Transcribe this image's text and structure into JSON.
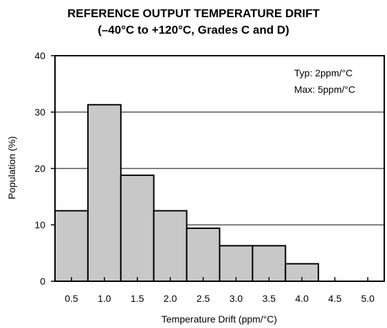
{
  "chart_data": {
    "type": "bar",
    "title_line1": "REFERENCE OUTPUT TEMPERATURE DRIFT",
    "title_line2": "(–40°C to +120°C, Grades C and D)",
    "xlabel": "Temperature Drift (ppm/°C)",
    "ylabel": "Population (%)",
    "ylim": [
      0,
      40
    ],
    "yticks": [
      0,
      10,
      20,
      30,
      40
    ],
    "xlim": [
      0.25,
      5.25
    ],
    "xticks": [
      0.5,
      1.0,
      1.5,
      2.0,
      2.5,
      3.0,
      3.5,
      4.0,
      4.5,
      5.0
    ],
    "xtick_labels": [
      "0.5",
      "1.0",
      "1.5",
      "2.0",
      "2.5",
      "3.0",
      "3.5",
      "4.0",
      "4.5",
      "5.0"
    ],
    "bins": [
      {
        "from": 0.25,
        "to": 0.75,
        "value": 12.5
      },
      {
        "from": 0.75,
        "to": 1.25,
        "value": 31.3
      },
      {
        "from": 1.25,
        "to": 1.75,
        "value": 18.8
      },
      {
        "from": 1.75,
        "to": 2.25,
        "value": 12.5
      },
      {
        "from": 2.25,
        "to": 2.75,
        "value": 9.4
      },
      {
        "from": 2.75,
        "to": 3.25,
        "value": 6.3
      },
      {
        "from": 3.25,
        "to": 3.75,
        "value": 6.3
      },
      {
        "from": 3.75,
        "to": 4.25,
        "value": 3.1
      }
    ],
    "grid": "horizontal",
    "annotations": [
      "Typ: 2ppm/°C",
      "Max: 5ppm/°C"
    ],
    "annotation_placement": "top-right",
    "bar_color": "#c8c8c8",
    "edge_color": "#000000"
  }
}
